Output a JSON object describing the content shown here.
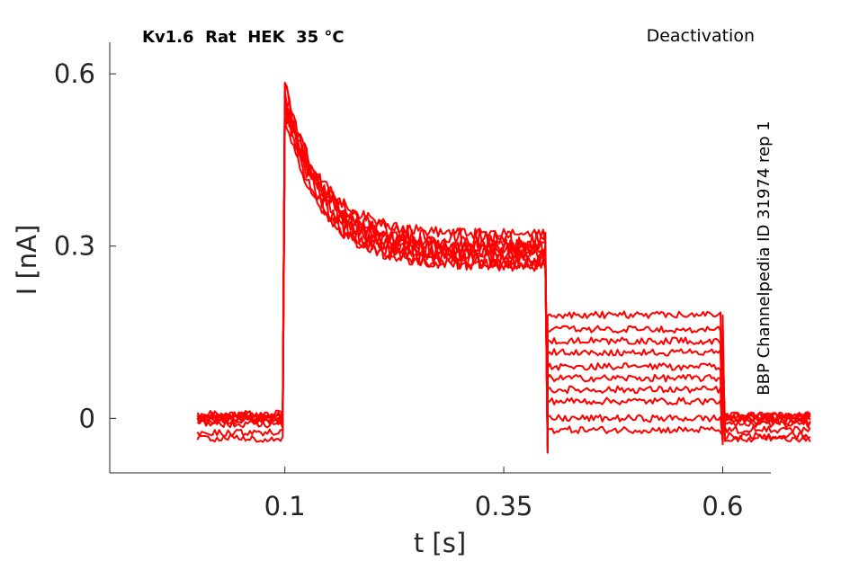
{
  "chart_data": {
    "type": "line",
    "title": "Kv1.6  Rat  HEK  35 °C",
    "protocol": "Deactivation",
    "side_label": "BBP Channelpedia ID 31974 rep 1",
    "xlabel": "t [s]",
    "ylabel": "I [nA]",
    "xlim": [
      -0.1,
      0.655
    ],
    "ylim": [
      -0.095,
      0.655
    ],
    "xticks": [
      0.1,
      0.35,
      0.6
    ],
    "xtick_labels": [
      "0.1",
      "0.35",
      "0.6"
    ],
    "yticks": [
      0,
      0.3,
      0.6
    ],
    "ytick_labels": [
      "0",
      "0.3",
      "0.6"
    ],
    "grid": false,
    "line_color": "#ff0000",
    "phases": {
      "step_on": 0.1,
      "step_off": 0.4,
      "tail_off": 0.6,
      "end": 0.7
    },
    "series": [
      {
        "baseline": -0.035,
        "peak": 0.52,
        "plateau": 0.265,
        "tail": 0.18,
        "after": -0.035
      },
      {
        "baseline": -0.025,
        "peak": 0.53,
        "plateau": 0.27,
        "tail": 0.155,
        "after": -0.03
      },
      {
        "baseline": -0.01,
        "peak": 0.55,
        "plateau": 0.275,
        "tail": 0.135,
        "after": -0.02
      },
      {
        "baseline": 0.0,
        "peak": 0.56,
        "plateau": 0.28,
        "tail": 0.115,
        "after": -0.01
      },
      {
        "baseline": 0.005,
        "peak": 0.57,
        "plateau": 0.285,
        "tail": 0.09,
        "after": 0.0
      },
      {
        "baseline": 0.008,
        "peak": 0.575,
        "plateau": 0.29,
        "tail": 0.07,
        "after": 0.005
      },
      {
        "baseline": 0.0,
        "peak": 0.58,
        "plateau": 0.295,
        "tail": 0.05,
        "after": 0.0
      },
      {
        "baseline": -0.005,
        "peak": 0.55,
        "plateau": 0.3,
        "tail": 0.03,
        "after": -0.005
      },
      {
        "baseline": 0.0,
        "peak": 0.54,
        "plateau": 0.31,
        "tail": 0.0,
        "after": 0.0
      },
      {
        "baseline": 0.005,
        "peak": 0.56,
        "plateau": 0.32,
        "tail": -0.02,
        "after": 0.005
      }
    ]
  }
}
